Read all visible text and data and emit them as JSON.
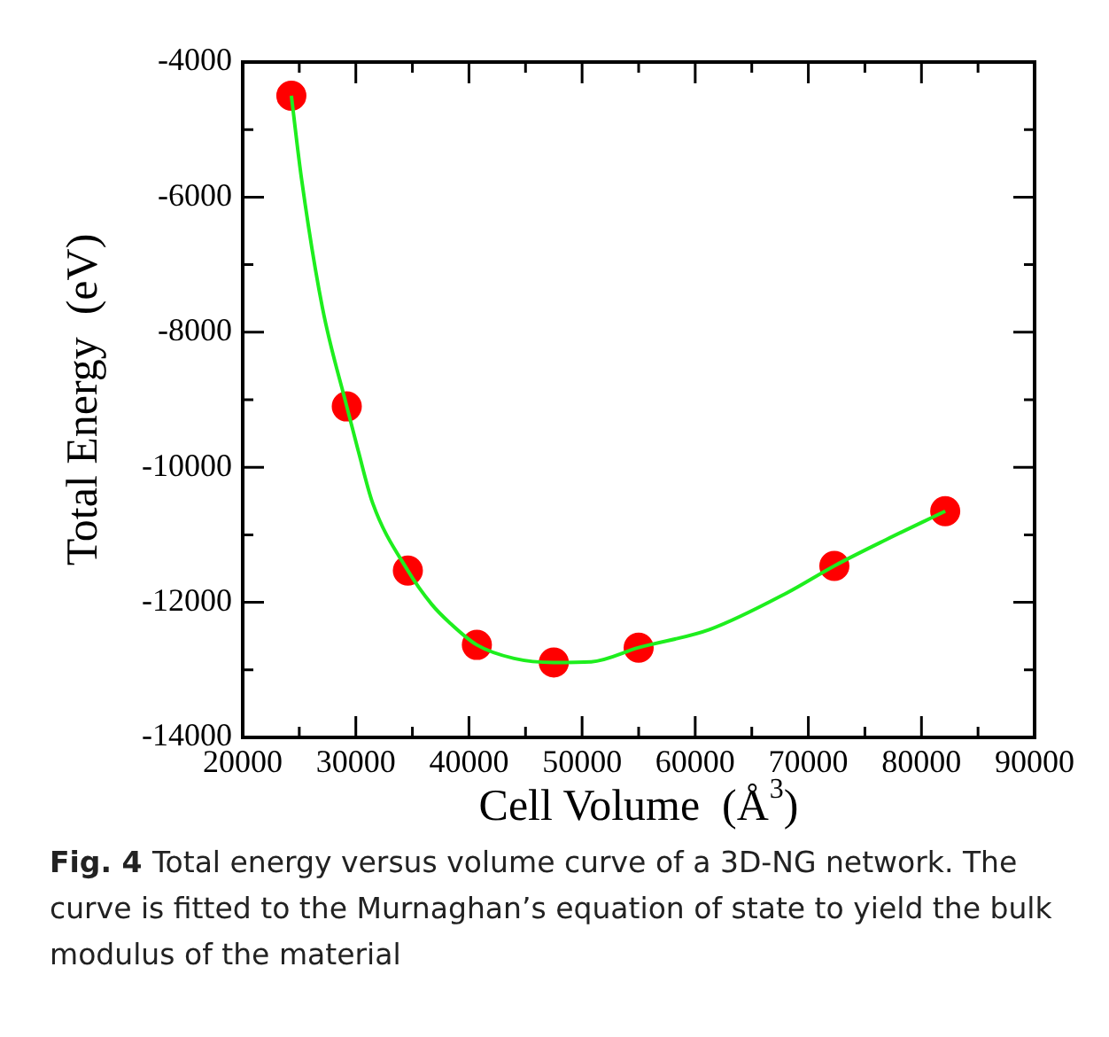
{
  "chart_data": {
    "type": "scatter",
    "xlabel": "Cell Volume  (Å$^{3}$)",
    "ylabel": "Total Energy  (eV)",
    "annotations": [
      "Fig. 4",
      "Total energy versus volume curve of a 3D-NG network. The curve is fitted to the Murnaghan’s equation of state to yield the bulk modulus of the material"
    ],
    "xlim": [
      20000,
      90000
    ],
    "ylim": [
      -14000,
      -4000
    ],
    "xticks": [
      20000,
      {
        "value": 25000,
        "label": null
      },
      30000,
      {
        "value": 35000,
        "label": null
      },
      40000,
      {
        "value": 45000,
        "label": null
      },
      50000,
      {
        "value": 55000,
        "label": null
      },
      60000,
      {
        "value": 65000,
        "label": null
      },
      70000,
      {
        "value": 75000,
        "label": null
      },
      80000,
      {
        "value": 85000,
        "label": null
      },
      90000
    ],
    "yticks": [
      -14000,
      {
        "value": -13000,
        "label": null
      },
      -12000,
      {
        "value": -11000,
        "label": null
      },
      -10000,
      {
        "value": -9000,
        "label": null
      },
      -8000,
      {
        "value": -7000,
        "label": null
      },
      -6000,
      {
        "value": -5000,
        "label": null
      },
      -4000
    ],
    "grid": false,
    "legend": false,
    "series": [
      {
        "type": "line",
        "color": "#1eee1e",
        "marker": "none",
        "line_style": "solid",
        "x": [
          24300,
          25200,
          27050,
          29200,
          30190,
          31490,
          34600,
          36710,
          38280,
          40700,
          43990,
          47500,
          50800,
          55000,
          61300,
          68100,
          72300,
          76900,
          82100
        ],
        "values": [
          -4500,
          -5730,
          -7640,
          -9100,
          -9740,
          -10530,
          -11530,
          -12030,
          -12300,
          -12630,
          -12830,
          -12890,
          -12880,
          -12670,
          -12400,
          -11860,
          -11460,
          -11070,
          -10650
        ]
      },
      {
        "type": "scatter",
        "color": "#ff0000",
        "marker": "circle",
        "x": [
          24300,
          29200,
          34600,
          40700,
          47500,
          55000,
          72300,
          82100
        ],
        "values": [
          -4500,
          -9100,
          -11530,
          -12630,
          -12890,
          -12670,
          -11460,
          -10650
        ]
      }
    ]
  }
}
